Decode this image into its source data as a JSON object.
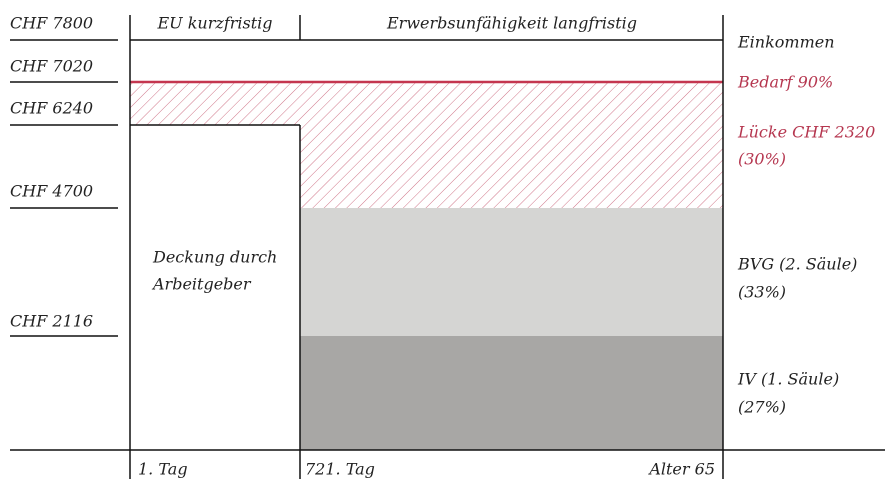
{
  "income_labels": [
    "CHF 7800",
    "CHF 7020",
    "CHF 6240",
    "CHF 4700",
    "CHF 2116"
  ],
  "header": {
    "short_term": "EU kurzfristig",
    "long_term": "Erwerbsunfähigkeit langfristig"
  },
  "time_labels": [
    "1. Tag",
    "721. Tag",
    "Alter 65"
  ],
  "employer": [
    "Deckung durch",
    "Arbeitgeber"
  ],
  "legend": {
    "income": "Einkommen",
    "need": "Bedarf 90%",
    "gap": [
      "Lücke CHF 2320",
      "(30%)"
    ],
    "bvg": [
      "BVG (2. Säule)",
      "(33%)"
    ],
    "iv": [
      "IV (1. Säule)",
      "(27%)"
    ]
  }
}
